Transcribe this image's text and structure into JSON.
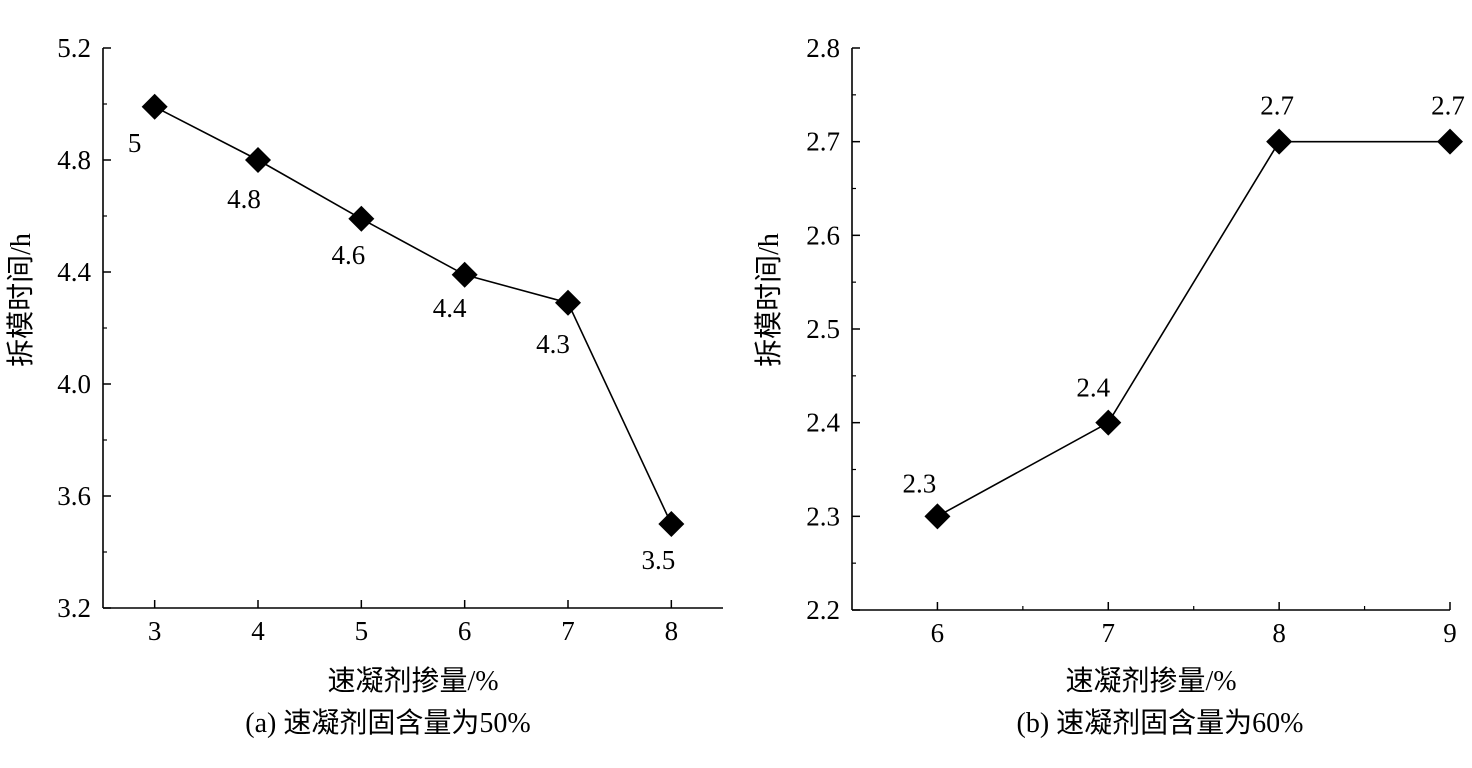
{
  "chart_data": [
    {
      "type": "line",
      "caption": "(a) 速凝剂固含量为50%",
      "xlabel": "速凝剂掺量/%",
      "ylabel": "拆模时间/h",
      "xlim": [
        2.5,
        8.5
      ],
      "ylim": [
        3.2,
        5.2
      ],
      "xticks": [
        3,
        4,
        5,
        6,
        7,
        8
      ],
      "xtick_labels": [
        "3",
        "4",
        "5",
        "6",
        "7",
        "8"
      ],
      "yticks": [
        3.2,
        3.6,
        4.0,
        4.4,
        4.8,
        5.2
      ],
      "ytick_labels": [
        "3.2",
        "3.6",
        "4.0",
        "4.4",
        "4.8",
        "5.2"
      ],
      "x": [
        3,
        4,
        5,
        6,
        7,
        8
      ],
      "values": [
        4.99,
        4.8,
        4.59,
        4.39,
        4.29,
        3.5
      ],
      "data_labels": [
        "5",
        "4.8",
        "4.6",
        "4.4",
        "4.3",
        "3.5"
      ],
      "marker": "diamond",
      "grid": false
    },
    {
      "type": "line",
      "caption": "(b) 速凝剂固含量为60%",
      "xlabel": "速凝剂掺量/%",
      "ylabel": "拆模时间/h",
      "xlim": [
        5.5,
        9
      ],
      "ylim": [
        2.2,
        2.8
      ],
      "xticks": [
        6,
        7,
        8,
        9
      ],
      "xtick_labels": [
        "6",
        "7",
        "8",
        "9"
      ],
      "yticks": [
        2.2,
        2.3,
        2.4,
        2.5,
        2.6,
        2.7,
        2.8
      ],
      "ytick_labels": [
        "2.2",
        "2.3",
        "2.4",
        "2.5",
        "2.6",
        "2.7",
        "2.8"
      ],
      "x": [
        6,
        7,
        8,
        9
      ],
      "values": [
        2.3,
        2.4,
        2.7,
        2.7
      ],
      "data_labels": [
        "2.3",
        "2.4",
        "2.7",
        "2.7"
      ],
      "marker": "diamond",
      "grid": false
    }
  ]
}
